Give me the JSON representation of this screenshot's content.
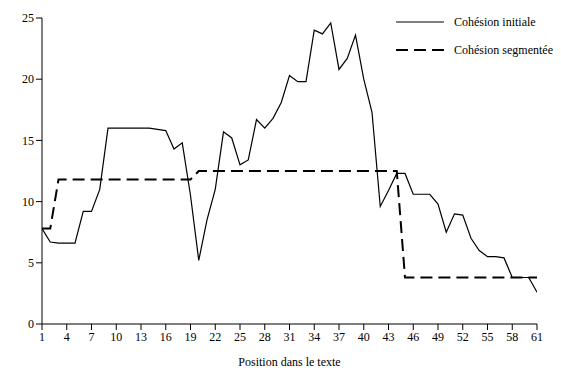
{
  "chart_data": {
    "type": "line",
    "x_label": "Position dans le texte",
    "x": [
      1,
      2,
      3,
      4,
      5,
      6,
      7,
      8,
      9,
      10,
      11,
      12,
      13,
      14,
      15,
      16,
      17,
      18,
      19,
      20,
      21,
      22,
      23,
      24,
      25,
      26,
      27,
      28,
      29,
      30,
      31,
      32,
      33,
      34,
      35,
      36,
      37,
      38,
      39,
      40,
      41,
      42,
      43,
      44,
      45,
      46,
      47,
      48,
      49,
      50,
      51,
      52,
      53,
      54,
      55,
      56,
      57,
      58,
      59,
      60,
      61
    ],
    "series": [
      {
        "name": "Cohésion initiale",
        "color": "#000000",
        "line_style": "solid",
        "values": [
          7.8,
          6.7,
          6.6,
          6.6,
          6.6,
          9.2,
          9.2,
          11,
          16,
          16,
          16,
          16,
          16,
          16,
          15.9,
          15.8,
          14.3,
          14.8,
          10.5,
          5.2,
          8.5,
          11,
          15.7,
          15.2,
          13,
          13.4,
          16.7,
          16,
          16.8,
          18.1,
          20.3,
          19.8,
          19.8,
          24,
          23.7,
          24.6,
          20.8,
          21.7,
          23.6,
          20,
          17.3,
          9.6,
          10.9,
          12.3,
          12.3,
          10.6,
          10.6,
          10.6,
          9.8,
          7.5,
          9,
          8.9,
          7,
          6,
          5.5,
          5.5,
          5.4,
          3.8,
          3.8,
          3.8,
          2.6
        ]
      },
      {
        "name": "Cohésion segmentée",
        "color": "#000000",
        "line_style": "dashed",
        "values": [
          7.8,
          7.8,
          11.8,
          11.8,
          11.8,
          11.8,
          11.8,
          11.8,
          11.8,
          11.8,
          11.8,
          11.8,
          11.8,
          11.8,
          11.8,
          11.8,
          11.8,
          11.8,
          11.8,
          12.5,
          12.5,
          12.5,
          12.5,
          12.5,
          12.5,
          12.5,
          12.5,
          12.5,
          12.5,
          12.5,
          12.5,
          12.5,
          12.5,
          12.5,
          12.5,
          12.5,
          12.5,
          12.5,
          12.5,
          12.5,
          12.5,
          12.5,
          12.5,
          12.5,
          3.8,
          3.8,
          3.8,
          3.8,
          3.8,
          3.8,
          3.8,
          3.8,
          3.8,
          3.8,
          3.8,
          3.8,
          3.8,
          3.8,
          3.8,
          3.8,
          3.8
        ]
      }
    ],
    "xlim": [
      1,
      61
    ],
    "xticks": [
      1,
      4,
      7,
      10,
      13,
      16,
      19,
      22,
      25,
      28,
      31,
      34,
      37,
      40,
      43,
      46,
      49,
      52,
      55,
      58,
      61
    ],
    "ylim": [
      0,
      25
    ],
    "yticks": [
      0,
      5,
      10,
      15,
      20,
      25
    ],
    "grid": false,
    "legend": "top-right"
  }
}
